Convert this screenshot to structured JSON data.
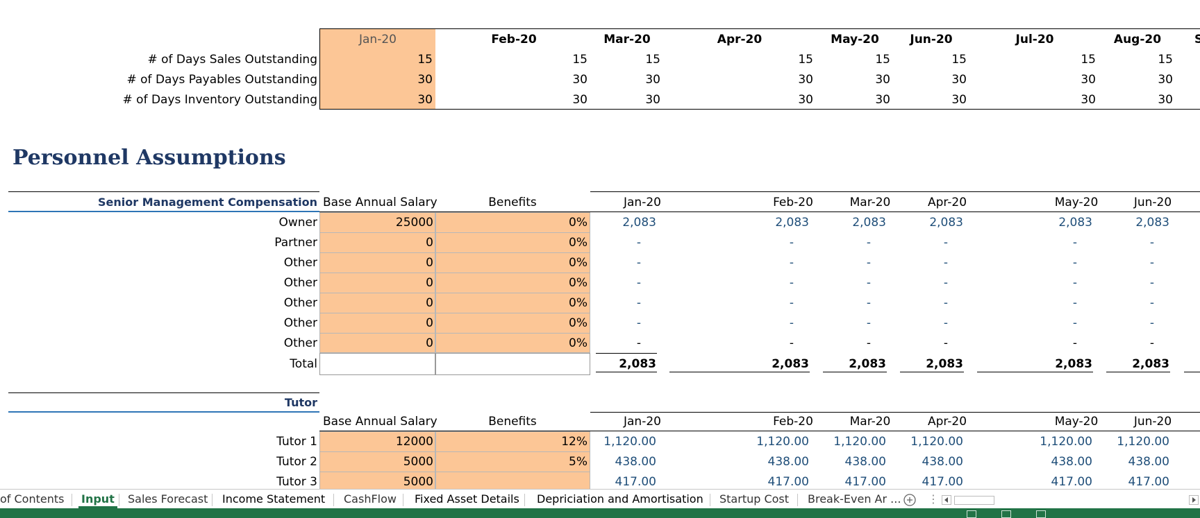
{
  "days": {
    "months": [
      "Jan-20",
      "Feb-20",
      "Mar-20",
      "Apr-20",
      "May-20",
      "Jun-20",
      "Jul-20",
      "Aug-20",
      "S"
    ],
    "rows": [
      {
        "label": "# of Days Sales Outstanding",
        "values": [
          "15",
          "15",
          "15",
          "15",
          "15",
          "15",
          "15",
          "15"
        ]
      },
      {
        "label": "# of Days Payables Outstanding",
        "values": [
          "30",
          "30",
          "30",
          "30",
          "30",
          "30",
          "30",
          "30"
        ]
      },
      {
        "label": "# of Days Inventory Outstanding",
        "values": [
          "30",
          "30",
          "30",
          "30",
          "30",
          "30",
          "30",
          "30"
        ]
      }
    ]
  },
  "personnel": {
    "title": "Personnel Assumptions",
    "senior": {
      "header": "Senior Management Compensation",
      "col_salary": "Base Annual Salary",
      "col_benefits": "Benefits",
      "months": [
        "Jan-20",
        "Feb-20",
        "Mar-20",
        "Apr-20",
        "May-20",
        "Jun-20"
      ],
      "rows": [
        {
          "label": "Owner",
          "salary": "25000",
          "benefits": "0%",
          "values": [
            "2,083",
            "2,083",
            "2,083",
            "2,083",
            "2,083",
            "2,083"
          ]
        },
        {
          "label": "Partner",
          "salary": "0",
          "benefits": "0%",
          "values": [
            "-",
            "-",
            "-",
            "-",
            "-",
            "-"
          ]
        },
        {
          "label": "Other",
          "salary": "0",
          "benefits": "0%",
          "values": [
            "-",
            "-",
            "-",
            "-",
            "-",
            "-"
          ]
        },
        {
          "label": "Other",
          "salary": "0",
          "benefits": "0%",
          "values": [
            "-",
            "-",
            "-",
            "-",
            "-",
            "-"
          ]
        },
        {
          "label": "Other",
          "salary": "0",
          "benefits": "0%",
          "values": [
            "-",
            "-",
            "-",
            "-",
            "-",
            "-"
          ]
        },
        {
          "label": "Other",
          "salary": "0",
          "benefits": "0%",
          "values": [
            "-",
            "-",
            "-",
            "-",
            "-",
            "-"
          ]
        },
        {
          "label": "Other",
          "salary": "0",
          "benefits": "0%",
          "values": [
            "-",
            "-",
            "-",
            "-",
            "-",
            "-"
          ]
        }
      ],
      "total_label": "Total",
      "totals": [
        "2,083",
        "2,083",
        "2,083",
        "2,083",
        "2,083",
        "2,083"
      ]
    },
    "tutor": {
      "header": "Tutor",
      "col_salary": "Base Annual Salary",
      "col_benefits": "Benefits",
      "months": [
        "Jan-20",
        "Feb-20",
        "Mar-20",
        "Apr-20",
        "May-20",
        "Jun-20"
      ],
      "rows": [
        {
          "label": "Tutor 1",
          "salary": "12000",
          "benefits": "12%",
          "values": [
            "1,120.00",
            "1,120.00",
            "1,120.00",
            "1,120.00",
            "1,120.00",
            "1,120.00"
          ]
        },
        {
          "label": "Tutor 2",
          "salary": "5000",
          "benefits": "5%",
          "values": [
            "438.00",
            "438.00",
            "438.00",
            "438.00",
            "438.00",
            "438.00"
          ]
        },
        {
          "label": "Tutor 3",
          "salary": "5000",
          "benefits": "",
          "values": [
            "417.00",
            "417.00",
            "417.00",
            "417.00",
            "417.00",
            "417.00"
          ]
        }
      ]
    }
  },
  "tabs": [
    "of Contents",
    "Input",
    "Sales Forecast",
    "Income Statement",
    "CashFlow",
    "Fixed Asset Details",
    "Depriciation and Amortisation",
    "Startup Cost",
    "Break-Even Ar ..."
  ],
  "active_tab": "Input",
  "icons": {
    "add_sheet": "plus-circle-icon",
    "more": "vertical-ellipsis-icon",
    "scroll_left": "triangle-left-icon",
    "scroll_right": "triangle-right-icon"
  },
  "colors": {
    "input_fill": "#fcc696",
    "excel_green": "#217346",
    "heading_blue": "#1f3864"
  }
}
